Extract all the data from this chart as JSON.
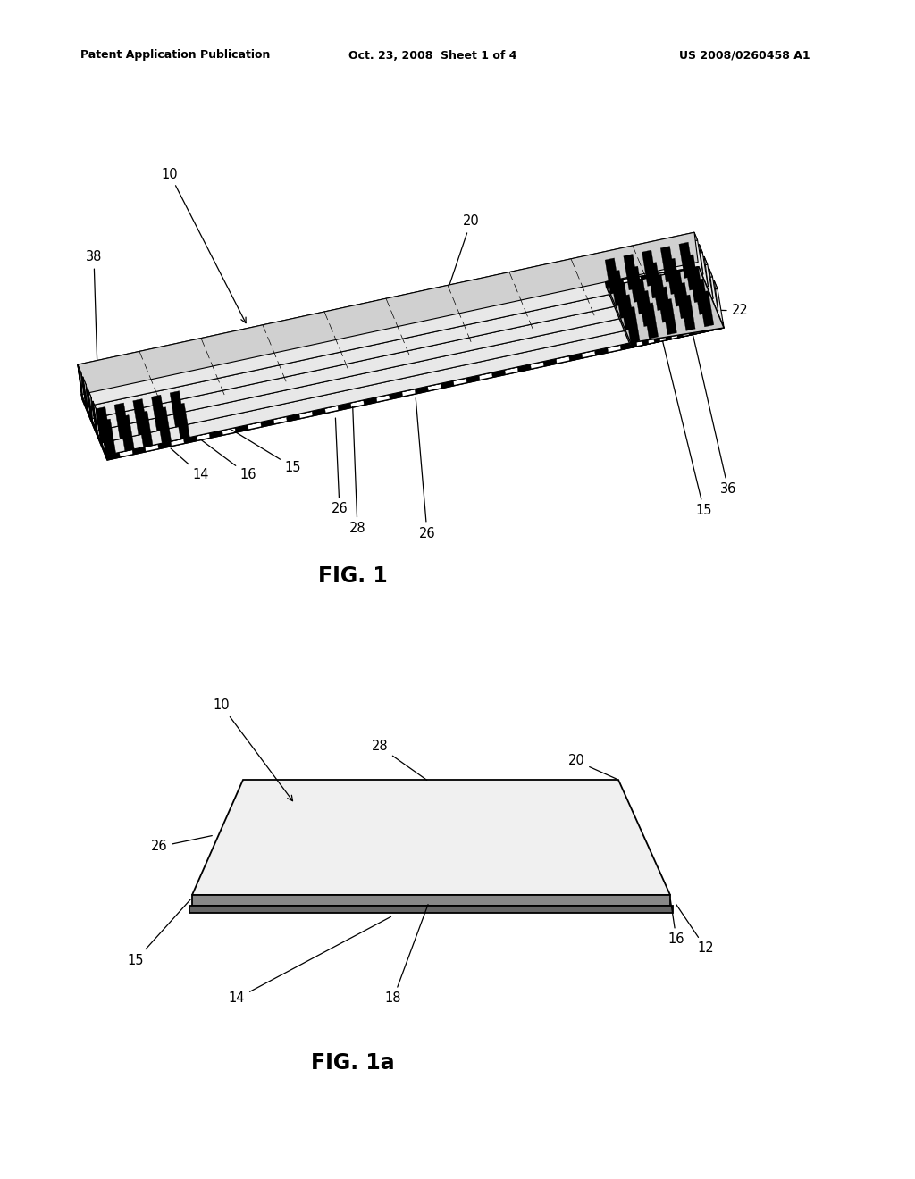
{
  "background_color": "#ffffff",
  "header_left": "Patent Application Publication",
  "header_center": "Oct. 23, 2008  Sheet 1 of 4",
  "header_right": "US 2008/0260458 A1",
  "fig1_label": "FIG. 1",
  "fig1a_label": "FIG. 1a",
  "text_color": "#000000",
  "line_color": "#000000"
}
